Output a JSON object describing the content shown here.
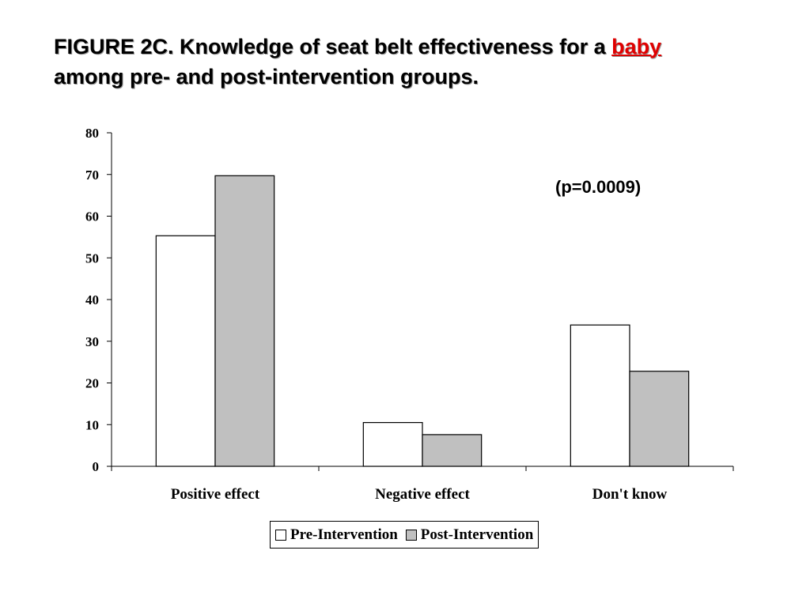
{
  "title": {
    "prefix": "FIGURE 2C. Knowledge of seat belt effectiveness for a ",
    "highlight": "baby",
    "line2": "among pre- and post-intervention groups."
  },
  "annotation": "(p=0.0009)",
  "colors": {
    "pre": "#ffffff",
    "post": "#c0c0c0",
    "highlight": "#e00000"
  },
  "chart_data": {
    "type": "bar",
    "title": "FIGURE 2C. Knowledge of seat belt effectiveness for a baby among pre- and post-intervention groups.",
    "xlabel": "",
    "ylabel": "",
    "categories": [
      "Positive effect",
      "Negative effect",
      "Don't know"
    ],
    "series": [
      {
        "name": "Pre-Intervention",
        "values": [
          55.3,
          10.5,
          33.9
        ],
        "color": "#ffffff"
      },
      {
        "name": "Post-Intervention",
        "values": [
          69.7,
          7.6,
          22.8
        ],
        "color": "#c0c0c0"
      }
    ],
    "ylim": [
      0,
      80
    ],
    "yticks": [
      0,
      10,
      20,
      30,
      40,
      50,
      60,
      70,
      80
    ],
    "grid": false,
    "legend": "bottom-center",
    "annotations": [
      "(p=0.0009)"
    ]
  }
}
